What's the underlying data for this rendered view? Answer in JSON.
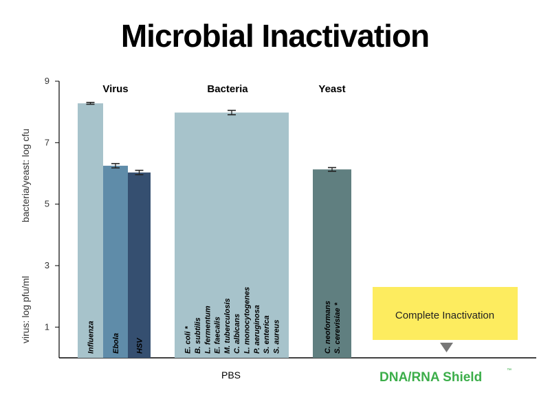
{
  "chart_data": {
    "type": "bar",
    "title": "Microbial Inactivation",
    "ylabel_lines": [
      "virus: log pfu/ml",
      "bacteria/yeast: log cfu"
    ],
    "yticks": [
      1,
      3,
      5,
      7,
      9
    ],
    "ylim": [
      0,
      9
    ],
    "groups": [
      {
        "label": "Virus",
        "bars": [
          {
            "labels": [
              "Influenza"
            ],
            "value": 8.28,
            "error": 0.03,
            "color": "#a7c3cb"
          },
          {
            "labels": [
              "Ebola"
            ],
            "value": 6.25,
            "error": 0.07,
            "color": "#5f8ca9"
          },
          {
            "labels": [
              "HSV"
            ],
            "value": 6.03,
            "error": 0.07,
            "color": "#354f70"
          }
        ]
      },
      {
        "label": "Bacteria",
        "bars": [
          {
            "labels": [
              "E. coli *",
              "B. subtilis",
              "L. fermentum",
              "E. faecalis",
              "M. tuberculosis",
              "C. albicans",
              "L. monocytogenes",
              "P. aeruginosa",
              "S. enterica",
              "S. aureus"
            ],
            "value": 7.98,
            "error": 0.07,
            "color": "#a7c3cb"
          }
        ]
      },
      {
        "label": "Yeast",
        "bars": [
          {
            "labels": [
              "C. neoformans",
              "S. cerevisiae *"
            ],
            "value": 6.13,
            "error": 0.06,
            "color": "#607f80"
          }
        ]
      }
    ],
    "x_categories": [
      "PBS",
      "DNA/RNA Shield"
    ],
    "trademark": "™",
    "annotation": "Complete Inactivation",
    "colors": {
      "annotation_bg": "#fdec5f",
      "marker": "#777777",
      "brand": "#3cae4a"
    }
  }
}
